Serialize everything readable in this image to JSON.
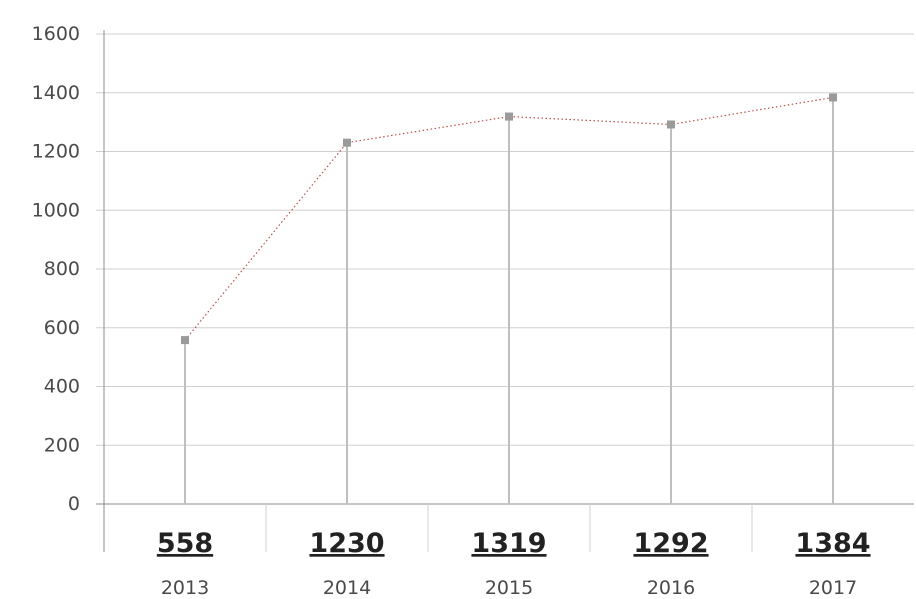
{
  "chart_data": {
    "type": "line",
    "categories": [
      "2013",
      "2014",
      "2015",
      "2016",
      "2017"
    ],
    "series": [
      {
        "values": [
          558,
          1230,
          1319,
          1292,
          1384
        ]
      }
    ],
    "value_labels": [
      "558",
      "1230",
      "1319",
      "1292",
      "1384"
    ],
    "y_ticks": [
      "0",
      "200",
      "400",
      "600",
      "800",
      "1000",
      "1200",
      "1400",
      "1600"
    ],
    "ylim": [
      0,
      1600
    ],
    "grid": true,
    "line_style": "dotted",
    "marker": "square",
    "colors": {
      "line": "#c0504d",
      "marker": "#9a9a9a",
      "drop_line": "#bfbfbf",
      "grid": "#d0d0d0",
      "axis": "#8c8c8c"
    }
  }
}
